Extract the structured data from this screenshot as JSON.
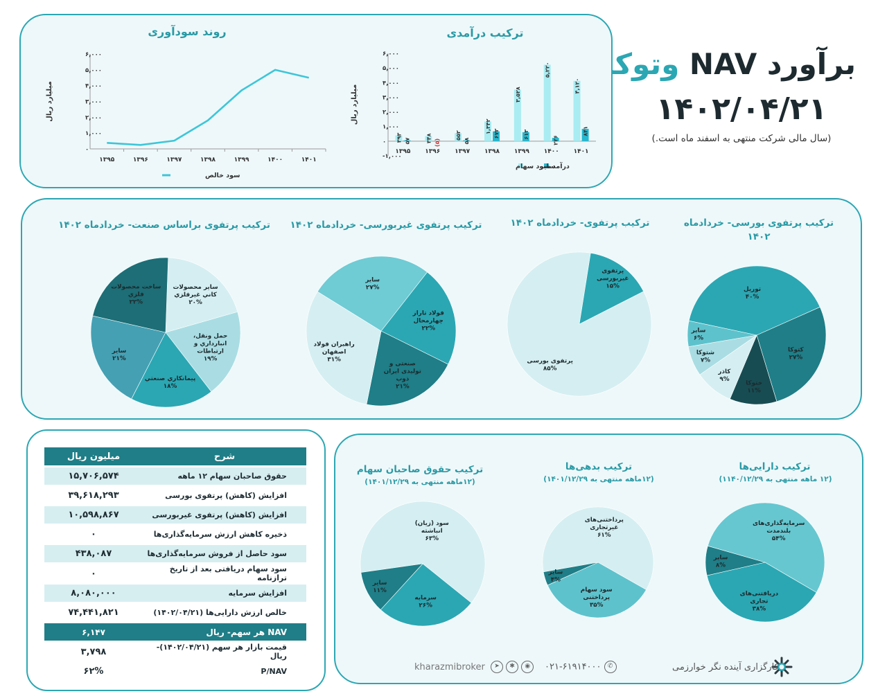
{
  "header": {
    "title_part1": "برآورد NAV",
    "title_part2": "وتوکا",
    "date": "۱۴۰۲/۰۴/۲۱",
    "note": "(سال مالی شرکت منتهی به اسفند ماه است.)"
  },
  "profit_chart": {
    "title": "روند سودآوری",
    "ylabel": "میلیارد ریال",
    "legend": "سود خالص",
    "yticks": [
      "۰",
      "۱,۰۰۰",
      "۲,۰۰۰",
      "۳,۰۰۰",
      "۴,۰۰۰",
      "۵,۰۰۰",
      "۶,۰۰۰"
    ]
  },
  "revenue_chart": {
    "title": "ترکیب درآمدی",
    "ylabel": "میلیارد ریال",
    "legend_a": "درآمد سود سهام",
    "legend_b": "سایر",
    "yticks": [
      "۱,۰۰۰-",
      "۰",
      "۱,۰۰۰",
      "۲,۰۰۰",
      "۳,۰۰۰",
      "۴,۰۰۰",
      "۵,۰۰۰",
      "۶,۰۰۰"
    ],
    "labels_a": [
      "۳۹۳",
      "۳۴۸",
      "۵۵۲",
      "۱,۳۴۲",
      "۳,۵۲۸",
      "۵,۲۲۰",
      "۴,۱۲۰"
    ],
    "labels_b": [
      "۵۷",
      "(۵)",
      "۵۸",
      "۶۷۲",
      "۶۱۳",
      "۲۲۶",
      "۸۴۱"
    ]
  },
  "chart_data": [
    {
      "type": "line",
      "title": "روند سودآوری",
      "ylabel": "میلیارد ریال",
      "ylim": [
        0,
        6000
      ],
      "categories": [
        "۱۳۹۵",
        "۱۳۹۶",
        "۱۳۹۷",
        "۱۳۹۸",
        "۱۳۹۹",
        "۱۴۰۰",
        "۱۴۰۱"
      ],
      "series": [
        {
          "name": "سود خالص",
          "values": [
            380,
            250,
            520,
            1800,
            3700,
            5000,
            4500
          ]
        }
      ]
    },
    {
      "type": "bar",
      "title": "ترکیب درآمدی",
      "ylabel": "میلیارد ریال",
      "ylim": [
        -1000,
        6000
      ],
      "categories": [
        "۱۳۹۵",
        "۱۳۹۶",
        "۱۳۹۷",
        "۱۳۹۸",
        "۱۳۹۹",
        "۱۴۰۰",
        "۱۴۰۱"
      ],
      "series": [
        {
          "name": "درآمد سود سهام",
          "values": [
            393,
            348,
            552,
            1342,
            3528,
            5220,
            4120
          ]
        },
        {
          "name": "سایر",
          "values": [
            57,
            -5,
            58,
            672,
            613,
            226,
            841
          ]
        }
      ]
    },
    {
      "type": "pie",
      "title": "ترکیب پرتفوی بورسی- خردادماه ۱۴۰۲",
      "slices": [
        {
          "label": "توریل",
          "pct": "۴۰%",
          "value": 40,
          "color": "#2ba7b3"
        },
        {
          "label": "کتوکا",
          "pct": "۲۷%",
          "value": 27,
          "color": "#1f7e87"
        },
        {
          "label": "ختوکا",
          "pct": "۱۱%",
          "value": 11,
          "color": "#174c52"
        },
        {
          "label": "کاذر",
          "pct": "۹%",
          "value": 9,
          "color": "#d5eef1"
        },
        {
          "label": "شتوکا",
          "pct": "۷%",
          "value": 7,
          "color": "#a9dde3"
        },
        {
          "label": "سایر",
          "pct": "۶%",
          "value": 6,
          "color": "#5ec2cc"
        }
      ]
    },
    {
      "type": "pie",
      "title": "ترکیب پرتفوی- خردادماه ۱۴۰۲",
      "slices": [
        {
          "label": "پرتفوی بورسی",
          "pct": "۸۵%",
          "value": 85,
          "color": "#d5eef1"
        },
        {
          "label": "پرتفوی غیربورسی",
          "pct": "۱۵%",
          "value": 15,
          "color": "#2ba7b3"
        }
      ]
    },
    {
      "type": "pie",
      "title": "ترکیب پرتفوی غیربورسی- خردادماه ۱۴۰۲",
      "slices": [
        {
          "label": "فولاد تاراز چهارمحال",
          "pct": "۲۲%",
          "value": 22,
          "color": "#2ba7b3"
        },
        {
          "label": "صنعتی و تولیدی ایران ذوب",
          "pct": "۲۱%",
          "value": 21,
          "color": "#1f7e87"
        },
        {
          "label": "راهبران فولاد اصفهان",
          "pct": "۳۱%",
          "value": 31,
          "color": "#d5eef1"
        },
        {
          "label": "سایر",
          "pct": "۲۷%",
          "value": 27,
          "color": "#6fcbd4"
        }
      ]
    },
    {
      "type": "pie",
      "title": "ترکیب پرتفوی براساس صنعت- خردادماه ۱۴۰۲",
      "slices": [
        {
          "label": "سایر محصولات كاني غيرفلزي",
          "pct": "۲۰%",
          "value": 20,
          "color": "#d5eef1"
        },
        {
          "label": "حمل ونقل، انبارداري و ارتباطات",
          "pct": "۱۹%",
          "value": 19,
          "color": "#a9dde3"
        },
        {
          "label": "پيمانكاري صنعتي",
          "pct": "۱۸%",
          "value": 18,
          "color": "#2ba7b3"
        },
        {
          "label": "سایر",
          "pct": "۲۱%",
          "value": 21,
          "color": "#45a0b3"
        },
        {
          "label": "ساخت محصولات فلزي",
          "pct": "۲۲%",
          "value": 22,
          "color": "#1d6e76"
        }
      ]
    },
    {
      "type": "pie",
      "title": "ترکیب دارایی‌ها",
      "slices": [
        {
          "label": "سرمایه‌گذاری‌های بلندمدت",
          "pct": "۵۴%",
          "value": 54,
          "color": "#66c7d0"
        },
        {
          "label": "دریافتنی‌های تجاری",
          "pct": "۳۸%",
          "value": 38,
          "color": "#2ba7b3"
        },
        {
          "label": "سایر",
          "pct": "۸%",
          "value": 8,
          "color": "#1f7e87"
        }
      ]
    },
    {
      "type": "pie",
      "title": "ترکیب بدهی‌ها",
      "slices": [
        {
          "label": "پرداختنی‌های غیرتجاری",
          "pct": "۶۱%",
          "value": 61,
          "color": "#d5eef1"
        },
        {
          "label": "سود سهام پرداختنی",
          "pct": "۳۵%",
          "value": 35,
          "color": "#5ec2cc"
        },
        {
          "label": "سایر",
          "pct": "۴%",
          "value": 4,
          "color": "#1f7e87"
        }
      ]
    },
    {
      "type": "pie",
      "title": "ترکیب حقوق صاحبان سهام",
      "slices": [
        {
          "label": "سود (زیان) انباشته",
          "pct": "۶۳%",
          "value": 63,
          "color": "#d5eef1"
        },
        {
          "label": "سرمایه",
          "pct": "۲۶%",
          "value": 26,
          "color": "#2ba7b3"
        },
        {
          "label": "سایر",
          "pct": "۱۱%",
          "value": 11,
          "color": "#1f7e87"
        }
      ]
    }
  ],
  "pies_mid": {
    "p1_title": "ترکیب پرتفوی بورسی- خردادماه ۱۴۰۲",
    "p2_title": "ترکیب پرتفوی- خردادماه ۱۴۰۲",
    "p3_title": "ترکیب پرتفوی غیربورسی- خردادماه ۱۴۰۲",
    "p4_title": "ترکیب پرتفوی براساس صنعت- خردادماه ۱۴۰۲"
  },
  "pies_bottom": {
    "assets_title": "ترکیب دارایی‌ها",
    "assets_sub": "(۱۲ ماهه منتهی به ۱۱۴۰/۱۲/۲۹)",
    "debts_title": "ترکیب بدهی‌ها",
    "debts_sub": "(۱۲ماهه منتهی به ۱۴۰۱/۱۲/۲۹)",
    "equity_title": "ترکیب حقوق صاحبان سهام",
    "equity_sub": "(۱۲ماهه منتهی به ۱۴۰۱/۱۲/۲۹)"
  },
  "table": {
    "col_desc": "شرح",
    "col_val": "میلیون ریال",
    "rows": [
      {
        "desc": "حقوق صاحبان سهام ۱۲ ماهه",
        "val": "۱۵,۷۰۶,۵۷۴"
      },
      {
        "desc": "افزایش (کاهش) پرتفوی بورسی",
        "val": "۳۹,۶۱۸,۲۹۳"
      },
      {
        "desc": "افزایش (کاهش) پرتفوی غیربورسی",
        "val": "۱۰,۵۹۸,۸۶۷"
      },
      {
        "desc": "ذخیره کاهش ارزش سرمایه‌گذاری‌ها",
        "val": "۰"
      },
      {
        "desc": "سود حاصل از فروش سرمایه‌گذاری‌ها",
        "val": "۴۳۸,۰۸۷"
      },
      {
        "desc": "سود سهام دریافتی بعد از تاریخ ترازنامه",
        "val": "۰"
      },
      {
        "desc": "افزایش سرمایه",
        "val": "۸,۰۸۰,۰۰۰"
      },
      {
        "desc": "خالص ارزش دارایی‌ها (۱۴۰۲/۰۴/۲۱)",
        "val": "۷۴,۴۴۱,۸۲۱"
      },
      {
        "desc": "NAV هر سهم- ریال",
        "val": "۶,۱۴۷"
      },
      {
        "desc": "قیمت بازار هر سهم (۱۴۰۲/۰۴/۲۱)- ریال",
        "val": "۳,۷۹۸"
      },
      {
        "desc": "P/NAV",
        "val": "۶۲%"
      }
    ]
  },
  "footer": {
    "company": "کارگزاری آینده نگر خوارزمی",
    "phone": "۰۲۱-۶۱۹۱۴۰۰۰",
    "handle": "kharazmibroker"
  },
  "colors": {
    "accent": "#2ba7b3",
    "dark": "#1f7e87",
    "light": "#d5eef1"
  }
}
